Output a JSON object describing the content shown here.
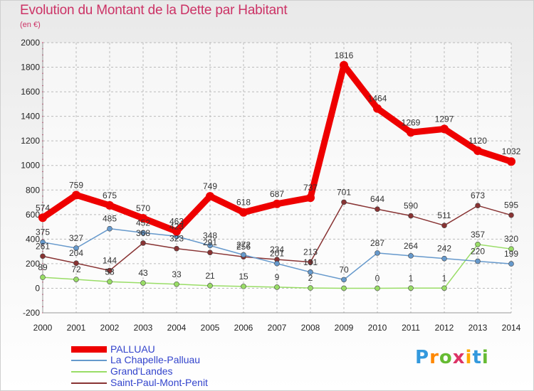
{
  "title": "Evolution du Montant de la Dette par Habitant",
  "unit": "(en €)",
  "logo": "Proxiti",
  "chart_data": {
    "type": "line",
    "x": [
      "2000",
      "2001",
      "2002",
      "2003",
      "2004",
      "2005",
      "2006",
      "2007",
      "2008",
      "2009",
      "2010",
      "2011",
      "2012",
      "2013",
      "2014"
    ],
    "ylim": [
      -200,
      2000
    ],
    "yticks": [
      -200,
      0,
      200,
      400,
      600,
      800,
      1000,
      1200,
      1400,
      1600,
      1800,
      2000
    ],
    "grid": true,
    "legend_position": "bottom-left",
    "series": [
      {
        "name": "PALLUAU",
        "color": "#ee0000",
        "values": [
          574,
          759,
          675,
          570,
          463,
          749,
          618,
          687,
          737,
          1816,
          1464,
          1269,
          1297,
          1120,
          1032
        ],
        "labels": [
          "574",
          "759",
          "675",
          "570",
          "463",
          "749",
          "618",
          "687",
          "737",
          "1816",
          "1464",
          "1269",
          "1297",
          "1120",
          "1032"
        ]
      },
      {
        "name": "La Chapelle-Palluau",
        "color": "#6699cc",
        "values": [
          375,
          327,
          485,
          452,
          423,
          348,
          272,
          201,
          131,
          70,
          287,
          264,
          242,
          220,
          199
        ],
        "labels": [
          "375",
          "327",
          "485",
          "452",
          "423",
          "348",
          "272",
          "201",
          "131",
          "70",
          "287",
          "264",
          "242",
          "220",
          "199"
        ]
      },
      {
        "name": "Grand'Landes",
        "color": "#99dd66",
        "values": [
          89,
          72,
          53,
          43,
          33,
          21,
          15,
          9,
          2,
          0,
          0,
          1,
          1,
          357,
          320
        ],
        "labels": [
          "89",
          "72",
          "53",
          "43",
          "33",
          "21",
          "15",
          "9",
          "2",
          "",
          "0",
          "1",
          "1",
          "357",
          "320"
        ]
      },
      {
        "name": "Saint-Paul-Mont-Penit",
        "color": "#883333",
        "values": [
          261,
          204,
          144,
          368,
          323,
          291,
          256,
          234,
          213,
          701,
          644,
          590,
          511,
          673,
          595
        ],
        "labels": [
          "261",
          "204",
          "144",
          "368",
          "323",
          "291",
          "256",
          "234",
          "213",
          "701",
          "644",
          "590",
          "511",
          "673",
          "595"
        ]
      }
    ]
  }
}
